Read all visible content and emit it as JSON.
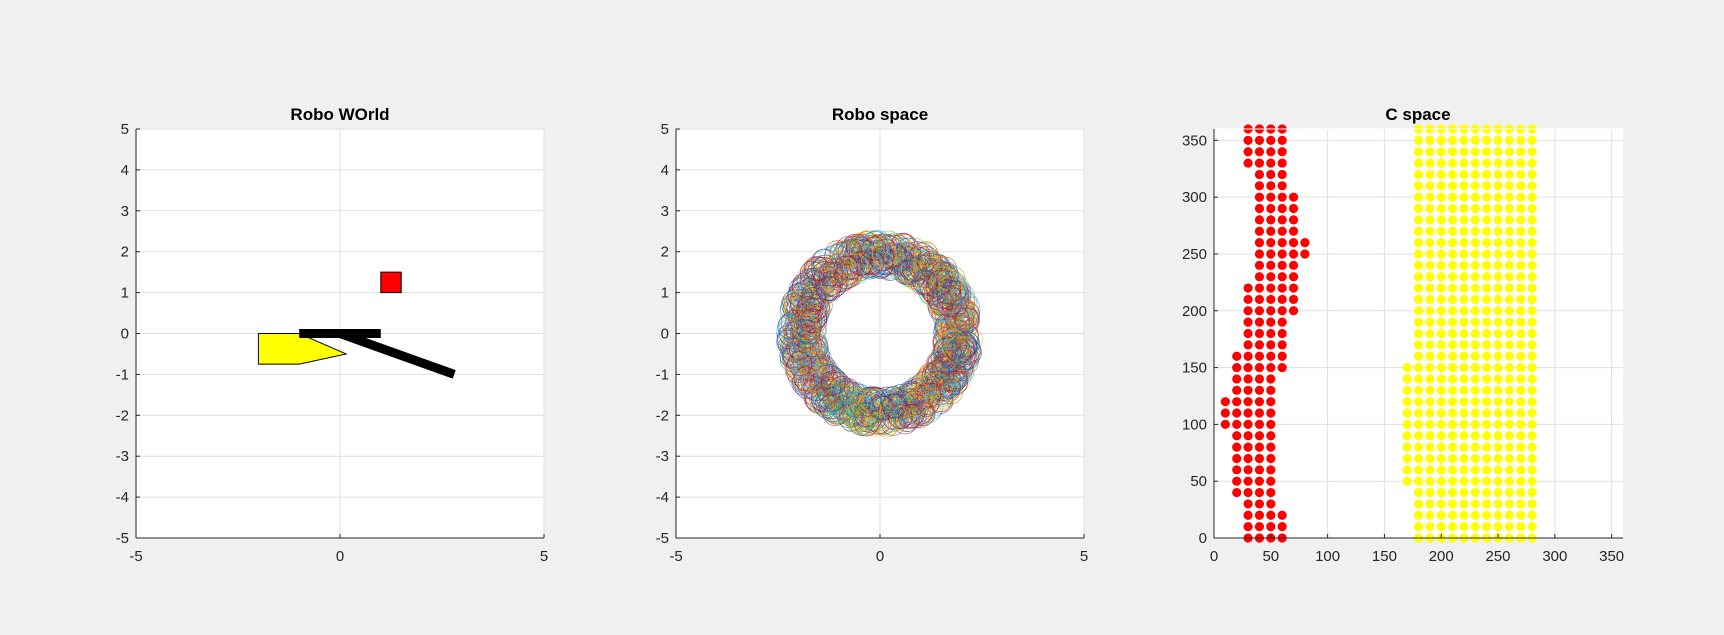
{
  "chart_data": [
    {
      "type": "scene",
      "title": "Robo WOrld",
      "xlim": [
        -5,
        5
      ],
      "ylim": [
        -5,
        5
      ],
      "xticks": [
        -5,
        0,
        5
      ],
      "yticks": [
        -5,
        -4,
        -3,
        -2,
        -1,
        0,
        1,
        2,
        3,
        4,
        5
      ],
      "grid": true,
      "obstacles": [
        {
          "shape": "polygon",
          "color": "#ffff00",
          "points": [
            [
              -2,
              0
            ],
            [
              -1,
              0
            ],
            [
              0.15,
              -0.5
            ],
            [
              -1,
              -0.75
            ],
            [
              -2,
              -0.75
            ]
          ]
        },
        {
          "shape": "square",
          "color": "#ff0000",
          "points": [
            [
              1,
              1
            ],
            [
              1.5,
              1
            ],
            [
              1.5,
              1.5
            ],
            [
              1,
              1.5
            ]
          ]
        }
      ],
      "arm_links": [
        {
          "from": [
            -1,
            0
          ],
          "to": [
            1,
            0
          ]
        },
        {
          "from": [
            0,
            0
          ],
          "to": [
            2.8,
            -1
          ]
        }
      ]
    },
    {
      "type": "scatter",
      "title": "Robo space",
      "xlim": [
        -5,
        5
      ],
      "ylim": [
        -5,
        5
      ],
      "xticks": [
        -5,
        0,
        5
      ],
      "yticks": [
        -5,
        -4,
        -3,
        -2,
        -1,
        0,
        1,
        2,
        3,
        4,
        5
      ],
      "grid": true,
      "marker": "circle-open",
      "region": {
        "shape": "annulus",
        "center": [
          0,
          0
        ],
        "inner_radius": 1.4,
        "outer_radius": 2.55
      }
    },
    {
      "type": "scatter",
      "title": "C space",
      "xlim": [
        0,
        360
      ],
      "ylim": [
        0,
        360
      ],
      "xticks": [
        0,
        50,
        100,
        150,
        200,
        250,
        300,
        350
      ],
      "yticks": [
        0,
        50,
        100,
        150,
        200,
        250,
        300,
        350
      ],
      "grid": true,
      "marker": "filled-circle",
      "series": [
        {
          "color": "#ff0000",
          "columns": [
            {
              "x": 10,
              "y_ranges": [
                [
                  100,
                  120
                ]
              ]
            },
            {
              "x": 20,
              "y_ranges": [
                [
                  40,
                  160
                ]
              ]
            },
            {
              "x": 30,
              "y_ranges": [
                [
                  0,
                  220
                ],
                [
                  330,
                  360
                ]
              ]
            },
            {
              "x": 40,
              "y_ranges": [
                [
                  0,
                  360
                ]
              ]
            },
            {
              "x": 50,
              "y_ranges": [
                [
                  0,
                  360
                ]
              ]
            },
            {
              "x": 60,
              "y_ranges": [
                [
                  0,
                  20
                ],
                [
                  150,
                  360
                ]
              ]
            },
            {
              "x": 70,
              "y_ranges": [
                [
                  200,
                  300
                ]
              ]
            },
            {
              "x": 80,
              "y_ranges": [
                [
                  250,
                  260
                ]
              ]
            }
          ]
        },
        {
          "color": "#ffff00",
          "columns": [
            {
              "x": 170,
              "y_ranges": [
                [
                  50,
                  150
                ]
              ]
            },
            {
              "x": 180,
              "y_ranges": [
                [
                  0,
                  360
                ]
              ]
            },
            {
              "x": 190,
              "y_ranges": [
                [
                  0,
                  360
                ]
              ]
            },
            {
              "x": 200,
              "y_ranges": [
                [
                  0,
                  360
                ]
              ]
            },
            {
              "x": 210,
              "y_ranges": [
                [
                  0,
                  360
                ]
              ]
            },
            {
              "x": 220,
              "y_ranges": [
                [
                  0,
                  360
                ]
              ]
            },
            {
              "x": 230,
              "y_ranges": [
                [
                  0,
                  360
                ]
              ]
            },
            {
              "x": 240,
              "y_ranges": [
                [
                  0,
                  360
                ]
              ]
            },
            {
              "x": 250,
              "y_ranges": [
                [
                  0,
                  360
                ]
              ]
            },
            {
              "x": 260,
              "y_ranges": [
                [
                  0,
                  360
                ]
              ]
            },
            {
              "x": 270,
              "y_ranges": [
                [
                  0,
                  360
                ]
              ]
            },
            {
              "x": 280,
              "y_ranges": [
                [
                  0,
                  360
                ]
              ]
            }
          ]
        }
      ]
    }
  ]
}
